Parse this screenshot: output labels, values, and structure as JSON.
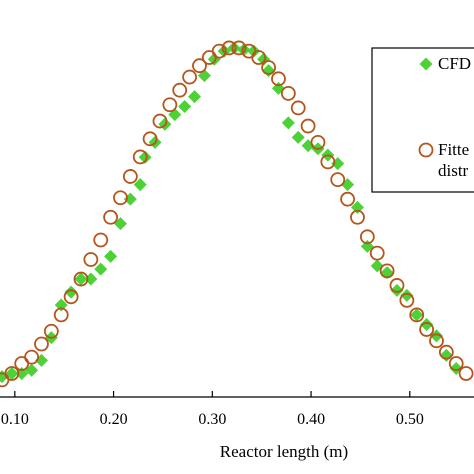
{
  "chart_data": {
    "type": "scatter",
    "title": "",
    "xlabel": "Reactor length (m)",
    "ylabel": "",
    "xlim": [
      0.085,
      0.565
    ],
    "ylim": [
      0,
      1
    ],
    "xticks": [
      0.1,
      0.2,
      0.3,
      0.4,
      0.5
    ],
    "xtick_labels": [
      "0.10",
      "0.20",
      "0.30",
      "0.40",
      "0.50"
    ],
    "grid": false,
    "legend_position": "top-right",
    "legend_lines": [
      [
        "CFD"
      ],
      [
        "Fitte",
        "distr"
      ]
    ],
    "series": [
      {
        "name": "CFD",
        "marker": "diamond",
        "color": "#4cd137",
        "points": [
          [
            0.087,
            0.046
          ],
          [
            0.097,
            0.055
          ],
          [
            0.107,
            0.055
          ],
          [
            0.117,
            0.064
          ],
          [
            0.127,
            0.092
          ],
          [
            0.137,
            0.156
          ],
          [
            0.147,
            0.248
          ],
          [
            0.157,
            0.284
          ],
          [
            0.167,
            0.321
          ],
          [
            0.177,
            0.321
          ],
          [
            0.187,
            0.349
          ],
          [
            0.197,
            0.385
          ],
          [
            0.207,
            0.477
          ],
          [
            0.217,
            0.546
          ],
          [
            0.227,
            0.587
          ],
          [
            0.232,
            0.664
          ],
          [
            0.242,
            0.706
          ],
          [
            0.252,
            0.757
          ],
          [
            0.262,
            0.784
          ],
          [
            0.272,
            0.807
          ],
          [
            0.282,
            0.835
          ],
          [
            0.292,
            0.894
          ],
          [
            0.302,
            0.94
          ],
          [
            0.312,
            0.963
          ],
          [
            0.322,
            0.972
          ],
          [
            0.332,
            0.967
          ],
          [
            0.342,
            0.963
          ],
          [
            0.352,
            0.94
          ],
          [
            0.357,
            0.908
          ],
          [
            0.367,
            0.858
          ],
          [
            0.377,
            0.761
          ],
          [
            0.387,
            0.72
          ],
          [
            0.397,
            0.697
          ],
          [
            0.407,
            0.688
          ],
          [
            0.417,
            0.67
          ],
          [
            0.427,
            0.646
          ],
          [
            0.437,
            0.587
          ],
          [
            0.447,
            0.523
          ],
          [
            0.457,
            0.413
          ],
          [
            0.467,
            0.358
          ],
          [
            0.477,
            0.339
          ],
          [
            0.487,
            0.289
          ],
          [
            0.497,
            0.275
          ],
          [
            0.507,
            0.22
          ],
          [
            0.517,
            0.193
          ],
          [
            0.527,
            0.161
          ],
          [
            0.537,
            0.106
          ],
          [
            0.547,
            0.069
          ]
        ]
      },
      {
        "name": "Fitte distr",
        "marker": "circle",
        "color": "#b5541b",
        "points": [
          [
            0.087,
            0.037
          ],
          [
            0.097,
            0.055
          ],
          [
            0.107,
            0.083
          ],
          [
            0.117,
            0.101
          ],
          [
            0.127,
            0.138
          ],
          [
            0.137,
            0.174
          ],
          [
            0.147,
            0.22
          ],
          [
            0.157,
            0.271
          ],
          [
            0.167,
            0.321
          ],
          [
            0.177,
            0.376
          ],
          [
            0.187,
            0.431
          ],
          [
            0.197,
            0.495
          ],
          [
            0.207,
            0.55
          ],
          [
            0.217,
            0.61
          ],
          [
            0.227,
            0.665
          ],
          [
            0.237,
            0.716
          ],
          [
            0.247,
            0.766
          ],
          [
            0.257,
            0.812
          ],
          [
            0.267,
            0.853
          ],
          [
            0.277,
            0.89
          ],
          [
            0.287,
            0.922
          ],
          [
            0.297,
            0.945
          ],
          [
            0.307,
            0.963
          ],
          [
            0.317,
            0.972
          ],
          [
            0.327,
            0.972
          ],
          [
            0.337,
            0.963
          ],
          [
            0.347,
            0.945
          ],
          [
            0.357,
            0.917
          ],
          [
            0.367,
            0.885
          ],
          [
            0.377,
            0.844
          ],
          [
            0.387,
            0.803
          ],
          [
            0.397,
            0.752
          ],
          [
            0.407,
            0.706
          ],
          [
            0.417,
            0.651
          ],
          [
            0.427,
            0.601
          ],
          [
            0.437,
            0.546
          ],
          [
            0.447,
            0.495
          ],
          [
            0.457,
            0.44
          ],
          [
            0.467,
            0.394
          ],
          [
            0.477,
            0.344
          ],
          [
            0.487,
            0.303
          ],
          [
            0.497,
            0.261
          ],
          [
            0.507,
            0.22
          ],
          [
            0.517,
            0.179
          ],
          [
            0.527,
            0.147
          ],
          [
            0.537,
            0.115
          ],
          [
            0.547,
            0.083
          ],
          [
            0.557,
            0.055
          ]
        ]
      }
    ]
  }
}
